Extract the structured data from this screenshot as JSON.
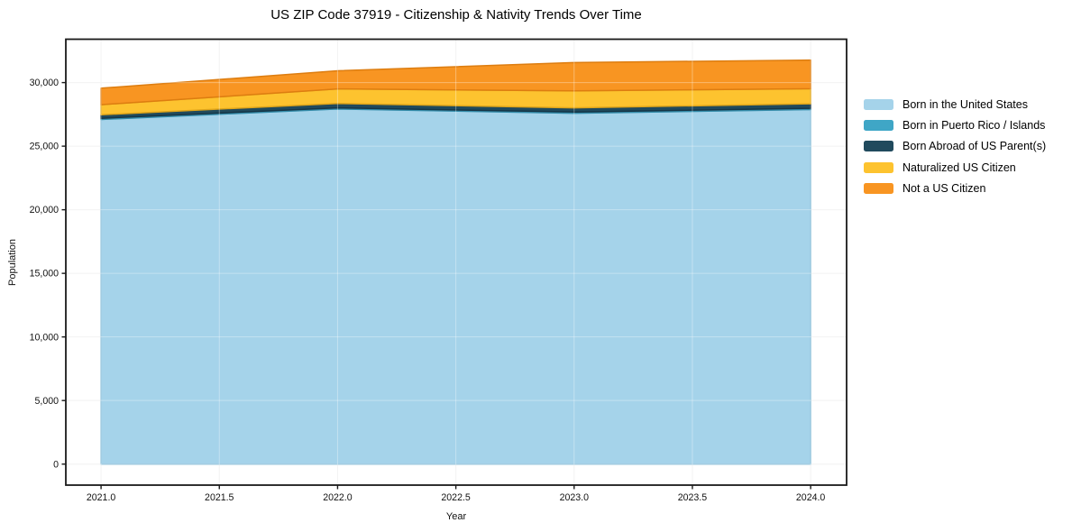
{
  "chart_data": {
    "type": "area",
    "stacked": true,
    "title": "US ZIP Code 37919 - Citizenship & Nativity Trends Over Time",
    "xlabel": "Year",
    "ylabel": "Population",
    "x": [
      2021,
      2022,
      2023,
      2024
    ],
    "series": [
      {
        "name": "Born in the United States",
        "color": "#a5d3ea",
        "edge": "#85bcd8",
        "values": [
          27100,
          27920,
          27590,
          27880
        ]
      },
      {
        "name": "Born in Puerto Rico / Islands",
        "color": "#3fa6c6",
        "edge": "#338caa",
        "values": [
          90,
          95,
          95,
          100
        ]
      },
      {
        "name": "Born Abroad of US Parent(s)",
        "color": "#204a5d",
        "edge": "#163647",
        "values": [
          280,
          345,
          330,
          350
        ]
      },
      {
        "name": "Naturalized US Citizen",
        "color": "#fdc32f",
        "edge": "#dfa51a",
        "values": [
          790,
          1140,
          1330,
          1190
        ]
      },
      {
        "name": "Not a US Citizen",
        "color": "#f89522",
        "edge": "#dd7d10",
        "values": [
          1300,
          1430,
          2230,
          2250
        ]
      }
    ],
    "totals": [
      29560,
      30930,
      31575,
      31770
    ],
    "xlim": [
      2020.851,
      2024.152
    ],
    "ylim": [
      -1652,
      33410
    ],
    "x_ticks": {
      "values": [
        2021,
        2021.5,
        2022,
        2022.5,
        2023,
        2023.5,
        2024
      ],
      "labels": [
        "2021.0",
        "2021.5",
        "2022.0",
        "2022.5",
        "2023.0",
        "2023.5",
        "2024.0"
      ]
    },
    "y_ticks": {
      "values": [
        0,
        5000,
        10000,
        15000,
        20000,
        25000,
        30000
      ],
      "labels": [
        "0",
        "5,000",
        "10,000",
        "15,000",
        "20,000",
        "25,000",
        "30,000"
      ]
    },
    "grid": true,
    "legend_position": "right",
    "frame_color": "#1a1a1a",
    "grid_color_under": "#ededed",
    "grid_color_over": "rgba(255,255,255,0.35)"
  }
}
